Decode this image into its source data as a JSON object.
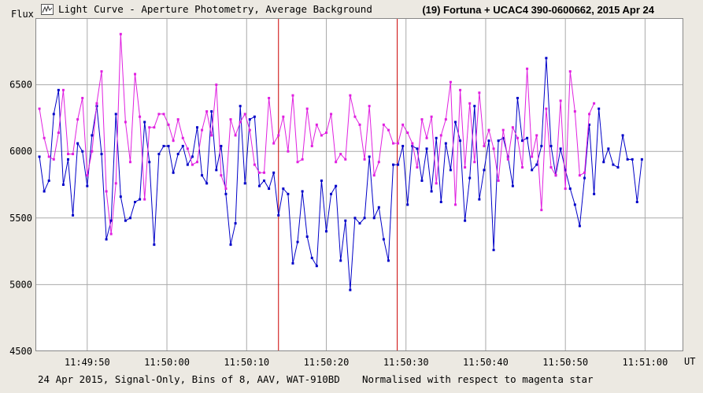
{
  "header": {
    "title": "Light Curve - Aperture Photometry, Average Background",
    "star_title": "(19) Fortuna + UCAC4 390-0600662,  2015 Apr 24",
    "app_icon": "light-curve-icon"
  },
  "footer": {
    "left_note": "24 Apr 2015, Signal-Only, Bins of 8, AAV, WAT-910BD",
    "right_note": "Normalised with respect to magenta star"
  },
  "colors": {
    "background": "#ece9e2",
    "plot_background": "#ffffff",
    "grid": "#aaaaaa",
    "blue_series": "#0000c8",
    "magenta_series": "#e020e0",
    "marker_lines": "#cc0000"
  },
  "chart_data": {
    "type": "line",
    "ylabel": "Flux",
    "xlabel": "UT",
    "ylim": [
      4500,
      7000
    ],
    "yticks": [
      4500,
      5000,
      5500,
      6000,
      6500
    ],
    "xlim": [
      "11:49:43.5",
      "11:51:04.8"
    ],
    "xticks": [
      "11:49:50",
      "11:50:00",
      "11:50:10",
      "11:50:20",
      "11:50:30",
      "11:50:40",
      "11:50:50",
      "11:51:00"
    ],
    "grid": true,
    "vertical_markers": [
      "11:50:14.0",
      "11:50:28.9"
    ],
    "series": [
      {
        "color": "blue",
        "points": [
          [
            "11:49:44.0",
            5960
          ],
          [
            "11:49:44.6",
            5700
          ],
          [
            "11:49:45.2",
            5780
          ],
          [
            "11:49:45.8",
            6280
          ],
          [
            "11:49:46.4",
            6460
          ],
          [
            "11:49:47.0",
            5750
          ],
          [
            "11:49:47.6",
            5940
          ],
          [
            "11:49:48.2",
            5520
          ],
          [
            "11:49:48.8",
            6060
          ],
          [
            "11:49:49.4",
            6000
          ],
          [
            "11:49:50.0",
            5740
          ],
          [
            "11:49:50.6",
            6120
          ],
          [
            "11:49:51.2",
            6340
          ],
          [
            "11:49:51.8",
            5980
          ],
          [
            "11:49:52.4",
            5340
          ],
          [
            "11:49:53.0",
            5480
          ],
          [
            "11:49:53.6",
            6280
          ],
          [
            "11:49:54.2",
            5660
          ],
          [
            "11:49:54.8",
            5480
          ],
          [
            "11:49:55.4",
            5500
          ],
          [
            "11:49:56.0",
            5620
          ],
          [
            "11:49:56.6",
            5640
          ],
          [
            "11:49:57.2",
            6220
          ],
          [
            "11:49:57.8",
            5920
          ],
          [
            "11:49:58.4",
            5300
          ],
          [
            "11:49:59.0",
            5980
          ],
          [
            "11:49:59.6",
            6040
          ],
          [
            "11:50:00.2",
            6040
          ],
          [
            "11:50:00.8",
            5840
          ],
          [
            "11:50:01.4",
            5980
          ],
          [
            "11:50:02.0",
            6040
          ],
          [
            "11:50:02.6",
            5900
          ],
          [
            "11:50:03.2",
            5960
          ],
          [
            "11:50:03.8",
            6180
          ],
          [
            "11:50:04.4",
            5820
          ],
          [
            "11:50:05.0",
            5760
          ],
          [
            "11:50:05.6",
            6300
          ],
          [
            "11:50:06.2",
            5860
          ],
          [
            "11:50:06.8",
            6040
          ],
          [
            "11:50:07.4",
            5680
          ],
          [
            "11:50:08.0",
            5300
          ],
          [
            "11:50:08.6",
            5460
          ],
          [
            "11:50:09.2",
            6340
          ],
          [
            "11:50:09.8",
            5760
          ],
          [
            "11:50:10.4",
            6240
          ],
          [
            "11:50:11.0",
            6260
          ],
          [
            "11:50:11.6",
            5740
          ],
          [
            "11:50:12.2",
            5780
          ],
          [
            "11:50:12.8",
            5720
          ],
          [
            "11:50:13.4",
            5840
          ],
          [
            "11:50:14.0",
            5520
          ],
          [
            "11:50:14.6",
            5720
          ],
          [
            "11:50:15.2",
            5680
          ],
          [
            "11:50:15.8",
            5160
          ],
          [
            "11:50:16.4",
            5320
          ],
          [
            "11:50:17.0",
            5700
          ],
          [
            "11:50:17.6",
            5360
          ],
          [
            "11:50:18.2",
            5200
          ],
          [
            "11:50:18.8",
            5140
          ],
          [
            "11:50:19.4",
            5780
          ],
          [
            "11:50:20.0",
            5400
          ],
          [
            "11:50:20.6",
            5680
          ],
          [
            "11:50:21.2",
            5740
          ],
          [
            "11:50:21.8",
            5180
          ],
          [
            "11:50:22.4",
            5480
          ],
          [
            "11:50:23.0",
            4960
          ],
          [
            "11:50:23.6",
            5500
          ],
          [
            "11:50:24.2",
            5460
          ],
          [
            "11:50:24.8",
            5500
          ],
          [
            "11:50:25.4",
            5960
          ],
          [
            "11:50:26.0",
            5500
          ],
          [
            "11:50:26.6",
            5580
          ],
          [
            "11:50:27.2",
            5340
          ],
          [
            "11:50:27.8",
            5180
          ],
          [
            "11:50:28.4",
            5900
          ],
          [
            "11:50:29.0",
            5900
          ],
          [
            "11:50:29.6",
            6040
          ],
          [
            "11:50:30.2",
            5600
          ],
          [
            "11:50:30.8",
            6040
          ],
          [
            "11:50:31.4",
            6020
          ],
          [
            "11:50:32.0",
            5780
          ],
          [
            "11:50:32.6",
            6020
          ],
          [
            "11:50:33.2",
            5700
          ],
          [
            "11:50:33.8",
            6100
          ],
          [
            "11:50:34.4",
            5620
          ],
          [
            "11:50:35.0",
            6060
          ],
          [
            "11:50:35.6",
            5860
          ],
          [
            "11:50:36.2",
            6220
          ],
          [
            "11:50:36.8",
            6080
          ],
          [
            "11:50:37.4",
            5480
          ],
          [
            "11:50:38.0",
            5800
          ],
          [
            "11:50:38.6",
            6340
          ],
          [
            "11:50:39.2",
            5640
          ],
          [
            "11:50:39.8",
            5860
          ],
          [
            "11:50:40.4",
            6080
          ],
          [
            "11:50:41.0",
            5260
          ],
          [
            "11:50:41.6",
            6080
          ],
          [
            "11:50:42.2",
            6100
          ],
          [
            "11:50:42.8",
            5960
          ],
          [
            "11:50:43.4",
            5740
          ],
          [
            "11:50:44.0",
            6400
          ],
          [
            "11:50:44.6",
            6080
          ],
          [
            "11:50:45.2",
            6100
          ],
          [
            "11:50:45.8",
            5860
          ],
          [
            "11:50:46.4",
            5900
          ],
          [
            "11:50:47.0",
            6040
          ],
          [
            "11:50:47.6",
            6700
          ],
          [
            "11:50:48.2",
            6040
          ],
          [
            "11:50:48.8",
            5820
          ],
          [
            "11:50:49.4",
            6020
          ],
          [
            "11:50:50.0",
            5860
          ],
          [
            "11:50:50.6",
            5720
          ],
          [
            "11:50:51.2",
            5600
          ],
          [
            "11:50:51.8",
            5440
          ],
          [
            "11:50:52.4",
            5800
          ],
          [
            "11:50:53.0",
            6200
          ],
          [
            "11:50:53.6",
            5680
          ],
          [
            "11:50:54.2",
            6320
          ],
          [
            "11:50:54.8",
            5920
          ],
          [
            "11:50:55.4",
            6020
          ],
          [
            "11:50:56.0",
            5900
          ],
          [
            "11:50:56.6",
            5880
          ],
          [
            "11:50:57.2",
            6120
          ],
          [
            "11:50:57.8",
            5940
          ],
          [
            "11:50:58.4",
            5940
          ],
          [
            "11:50:59.0",
            5620
          ],
          [
            "11:50:59.6",
            5940
          ]
        ]
      },
      {
        "color": "magenta",
        "points": [
          [
            "11:49:44.0",
            6320
          ],
          [
            "11:49:44.6",
            6100
          ],
          [
            "11:49:45.2",
            5960
          ],
          [
            "11:49:45.8",
            5940
          ],
          [
            "11:49:46.4",
            6140
          ],
          [
            "11:49:47.0",
            6460
          ],
          [
            "11:49:47.6",
            5980
          ],
          [
            "11:49:48.2",
            5980
          ],
          [
            "11:49:48.8",
            6240
          ],
          [
            "11:49:49.4",
            6400
          ],
          [
            "11:49:50.0",
            5820
          ],
          [
            "11:49:50.6",
            6000
          ],
          [
            "11:49:51.2",
            6360
          ],
          [
            "11:49:51.8",
            6600
          ],
          [
            "11:49:52.4",
            5700
          ],
          [
            "11:49:53.0",
            5380
          ],
          [
            "11:49:53.6",
            5760
          ],
          [
            "11:49:54.2",
            6880
          ],
          [
            "11:49:54.8",
            6220
          ],
          [
            "11:49:55.4",
            5920
          ],
          [
            "11:49:56.0",
            6580
          ],
          [
            "11:49:56.6",
            6260
          ],
          [
            "11:49:57.2",
            5640
          ],
          [
            "11:49:57.8",
            6180
          ],
          [
            "11:49:58.4",
            6180
          ],
          [
            "11:49:59.0",
            6280
          ],
          [
            "11:49:59.6",
            6280
          ],
          [
            "11:50:00.2",
            6200
          ],
          [
            "11:50:00.8",
            6080
          ],
          [
            "11:50:01.4",
            6240
          ],
          [
            "11:50:02.0",
            6100
          ],
          [
            "11:50:02.6",
            6020
          ],
          [
            "11:50:03.2",
            5900
          ],
          [
            "11:50:03.8",
            5920
          ],
          [
            "11:50:04.4",
            6160
          ],
          [
            "11:50:05.0",
            6300
          ],
          [
            "11:50:05.6",
            6120
          ],
          [
            "11:50:06.2",
            6500
          ],
          [
            "11:50:06.8",
            5820
          ],
          [
            "11:50:07.4",
            5720
          ],
          [
            "11:50:08.0",
            6240
          ],
          [
            "11:50:08.6",
            6120
          ],
          [
            "11:50:09.2",
            6220
          ],
          [
            "11:50:09.8",
            6280
          ],
          [
            "11:50:10.4",
            6160
          ],
          [
            "11:50:11.0",
            5900
          ],
          [
            "11:50:11.6",
            5840
          ],
          [
            "11:50:12.2",
            5840
          ],
          [
            "11:50:12.8",
            6400
          ],
          [
            "11:50:13.4",
            6060
          ],
          [
            "11:50:14.0",
            6120
          ],
          [
            "11:50:14.6",
            6260
          ],
          [
            "11:50:15.2",
            6000
          ],
          [
            "11:50:15.8",
            6420
          ],
          [
            "11:50:16.4",
            5920
          ],
          [
            "11:50:17.0",
            5940
          ],
          [
            "11:50:17.6",
            6320
          ],
          [
            "11:50:18.2",
            6040
          ],
          [
            "11:50:18.8",
            6200
          ],
          [
            "11:50:19.4",
            6120
          ],
          [
            "11:50:20.0",
            6140
          ],
          [
            "11:50:20.6",
            6280
          ],
          [
            "11:50:21.2",
            5920
          ],
          [
            "11:50:21.8",
            5980
          ],
          [
            "11:50:22.4",
            5940
          ],
          [
            "11:50:23.0",
            6420
          ],
          [
            "11:50:23.6",
            6260
          ],
          [
            "11:50:24.2",
            6200
          ],
          [
            "11:50:24.8",
            5940
          ],
          [
            "11:50:25.4",
            6340
          ],
          [
            "11:50:26.0",
            5820
          ],
          [
            "11:50:26.6",
            5920
          ],
          [
            "11:50:27.2",
            6200
          ],
          [
            "11:50:27.8",
            6160
          ],
          [
            "11:50:28.4",
            6060
          ],
          [
            "11:50:29.0",
            6060
          ],
          [
            "11:50:29.6",
            6200
          ],
          [
            "11:50:30.2",
            6140
          ],
          [
            "11:50:30.8",
            6060
          ],
          [
            "11:50:31.4",
            5880
          ],
          [
            "11:50:32.0",
            6240
          ],
          [
            "11:50:32.6",
            6100
          ],
          [
            "11:50:33.2",
            6260
          ],
          [
            "11:50:33.8",
            5760
          ],
          [
            "11:50:34.4",
            6120
          ],
          [
            "11:50:35.0",
            6240
          ],
          [
            "11:50:35.6",
            6520
          ],
          [
            "11:50:36.2",
            5600
          ],
          [
            "11:50:36.8",
            6460
          ],
          [
            "11:50:37.4",
            5880
          ],
          [
            "11:50:38.0",
            6360
          ],
          [
            "11:50:38.6",
            5920
          ],
          [
            "11:50:39.2",
            6440
          ],
          [
            "11:50:39.8",
            6040
          ],
          [
            "11:50:40.4",
            6160
          ],
          [
            "11:50:41.0",
            6020
          ],
          [
            "11:50:41.6",
            5780
          ],
          [
            "11:50:42.2",
            6160
          ],
          [
            "11:50:42.8",
            5940
          ],
          [
            "11:50:43.4",
            6180
          ],
          [
            "11:50:44.0",
            6100
          ],
          [
            "11:50:44.6",
            5880
          ],
          [
            "11:50:45.2",
            6620
          ],
          [
            "11:50:45.8",
            5960
          ],
          [
            "11:50:46.4",
            6120
          ],
          [
            "11:50:47.0",
            5560
          ],
          [
            "11:50:47.6",
            6320
          ],
          [
            "11:50:48.2",
            5880
          ],
          [
            "11:50:48.8",
            5820
          ],
          [
            "11:50:49.4",
            6380
          ],
          [
            "11:50:50.0",
            5720
          ],
          [
            "11:50:50.6",
            6600
          ],
          [
            "11:50:51.2",
            6300
          ],
          [
            "11:50:51.8",
            5820
          ],
          [
            "11:50:52.4",
            5840
          ],
          [
            "11:50:53.0",
            6280
          ],
          [
            "11:50:53.6",
            6360
          ]
        ]
      }
    ]
  }
}
